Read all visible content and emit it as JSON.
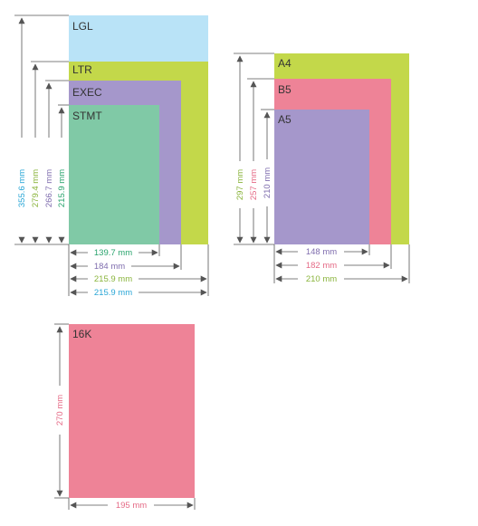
{
  "colors": {
    "lgl": "#b9e3f7",
    "ltr": "#c3d84a",
    "exec": "#a597cb",
    "stmt": "#80c9a6",
    "a4": "#c3d84a",
    "b5": "#ee8397",
    "a5": "#a597cb",
    "k16": "#ee8397",
    "line": "#555555",
    "text_cyan": "#29a6d6",
    "text_green": "#8ab43c",
    "text_purple": "#7f6dae",
    "text_teal": "#28a36c",
    "text_pink": "#e56a86"
  },
  "group_us": {
    "papers": [
      {
        "key": "lgl",
        "label": "LGL"
      },
      {
        "key": "ltr",
        "label": "LTR"
      },
      {
        "key": "exec",
        "label": "EXEC"
      },
      {
        "key": "stmt",
        "label": "STMT"
      }
    ],
    "heights": [
      {
        "key": "lgl",
        "label": "355.6 mm"
      },
      {
        "key": "ltr",
        "label": "279.4 mm"
      },
      {
        "key": "exec",
        "label": "266.7 mm"
      },
      {
        "key": "stmt",
        "label": "215.9 mm"
      }
    ],
    "widths": [
      {
        "key": "stmt",
        "label": "139.7 mm"
      },
      {
        "key": "exec",
        "label": "184 mm"
      },
      {
        "key": "ltr",
        "label": "215.9 mm"
      },
      {
        "key": "lgl",
        "label": "215.9 mm"
      }
    ]
  },
  "group_iso": {
    "papers": [
      {
        "key": "a4",
        "label": "A4"
      },
      {
        "key": "b5",
        "label": "B5"
      },
      {
        "key": "a5",
        "label": "A5"
      }
    ],
    "heights": [
      {
        "key": "a4",
        "label": "297 mm"
      },
      {
        "key": "b5",
        "label": "257 mm"
      },
      {
        "key": "a5",
        "label": "210 mm"
      }
    ],
    "widths": [
      {
        "key": "a5",
        "label": "148 mm"
      },
      {
        "key": "b5",
        "label": "182 mm"
      },
      {
        "key": "a4",
        "label": "210 mm"
      }
    ]
  },
  "group_16k": {
    "paper": {
      "key": "k16",
      "label": "16K"
    },
    "height": {
      "label": "270 mm"
    },
    "width": {
      "label": "195 mm"
    }
  }
}
